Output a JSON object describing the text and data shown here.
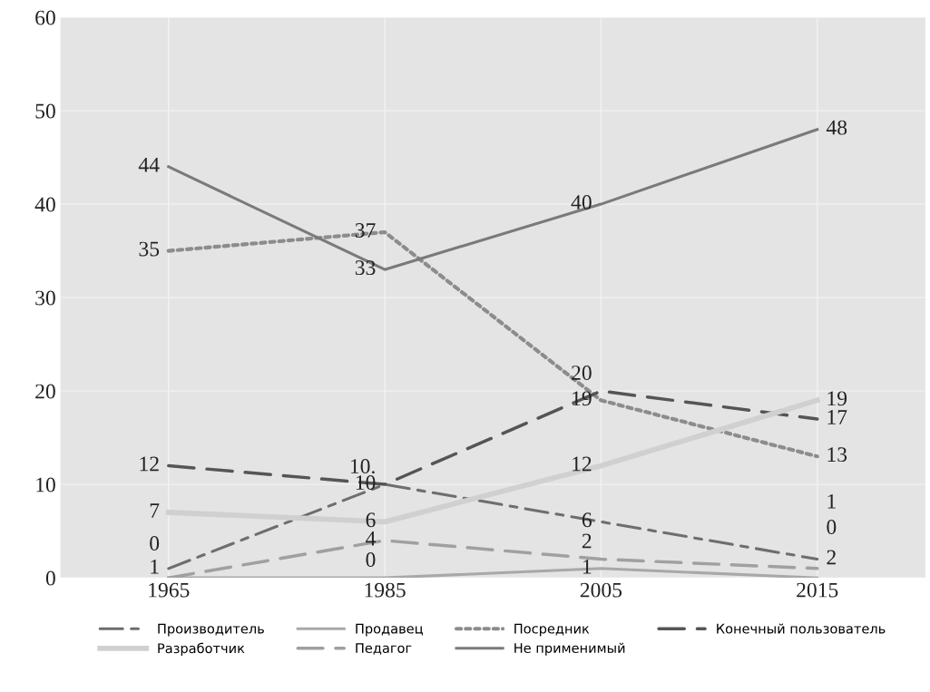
{
  "chart_data": {
    "type": "line",
    "categories": [
      "1965",
      "1985",
      "2005",
      "2015"
    ],
    "ylim": [
      0,
      60
    ],
    "yticks": [
      0,
      10,
      20,
      30,
      40,
      50,
      60
    ],
    "grid": true,
    "legend": "bottom",
    "series": [
      {
        "name": "Производитель",
        "color": "#6e6e6e",
        "line_style": "dashdot",
        "values": [
          1,
          10,
          6,
          2
        ],
        "value_labels": [
          "1",
          "10",
          "6",
          "2"
        ]
      },
      {
        "name": "Продавец",
        "color": "#a8a8a8",
        "line_style": "solid",
        "values": [
          0,
          0,
          1,
          0
        ],
        "value_labels": [
          "0",
          "0",
          "1",
          "0"
        ]
      },
      {
        "name": "Посредник",
        "color": "#8c8c8c",
        "line_style": "dotted",
        "values": [
          35,
          37,
          19,
          13
        ],
        "value_labels": [
          "35",
          "37",
          "19",
          "13"
        ]
      },
      {
        "name": "Конечный пользователь",
        "color": "#555555",
        "line_style": "dashed",
        "values": [
          12,
          10,
          20,
          17
        ],
        "value_labels": [
          "12",
          "10.",
          "20",
          "17"
        ]
      },
      {
        "name": "Разработчик",
        "color": "#d0d0d0",
        "line_style": "solid",
        "values": [
          7,
          6,
          12,
          19
        ],
        "value_labels": [
          "7",
          "6",
          "12",
          "19"
        ]
      },
      {
        "name": "Педагог",
        "color": "#a0a0a0",
        "line_style": "dashed",
        "values": [
          0,
          4,
          2,
          1
        ],
        "value_labels": [
          null,
          "4",
          "2",
          "1"
        ]
      },
      {
        "name": "Не применимый",
        "color": "#7a7a7a",
        "line_style": "solid",
        "values": [
          44,
          33,
          40,
          48
        ],
        "value_labels": [
          "44",
          "33",
          "40",
          "48"
        ]
      }
    ]
  }
}
